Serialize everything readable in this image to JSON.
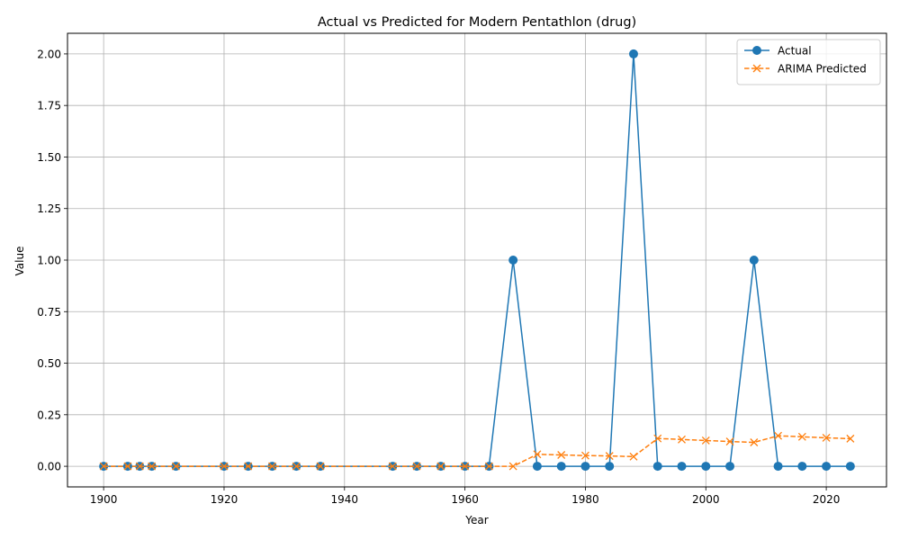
{
  "chart_data": {
    "type": "line",
    "title": "Actual vs Predicted for Modern Pentathlon (drug)",
    "xlabel": "Year",
    "ylabel": "Value",
    "xlim": [
      1894,
      2030
    ],
    "ylim": [
      -0.1,
      2.1
    ],
    "xticks": [
      1900,
      1920,
      1940,
      1960,
      1980,
      2000,
      2020
    ],
    "yticks": [
      0.0,
      0.25,
      0.5,
      0.75,
      1.0,
      1.25,
      1.5,
      1.75,
      2.0
    ],
    "ytick_labels": [
      "0.00",
      "0.25",
      "0.50",
      "0.75",
      "1.00",
      "1.25",
      "1.50",
      "1.75",
      "2.00"
    ],
    "grid": true,
    "legend_position": "upper right",
    "x": [
      1900,
      1904,
      1906,
      1908,
      1912,
      1920,
      1924,
      1928,
      1932,
      1936,
      1948,
      1952,
      1956,
      1960,
      1964,
      1968,
      1972,
      1976,
      1980,
      1984,
      1988,
      1992,
      1996,
      2000,
      2004,
      2008,
      2012,
      2016,
      2020,
      2024
    ],
    "series": [
      {
        "name": "Actual",
        "color": "#1f77b4",
        "marker": "circle",
        "linestyle": "solid",
        "values": [
          0,
          0,
          0,
          0,
          0,
          0,
          0,
          0,
          0,
          0,
          0,
          0,
          0,
          0,
          0,
          1,
          0,
          0,
          0,
          0,
          2,
          0,
          0,
          0,
          0,
          1,
          0,
          0,
          0,
          0
        ]
      },
      {
        "name": "ARIMA Predicted",
        "color": "#ff7f0e",
        "marker": "x",
        "linestyle": "dashed",
        "values": [
          0,
          0,
          0,
          0,
          0,
          0,
          0,
          0,
          0,
          0,
          0,
          0,
          0,
          0,
          0,
          0,
          0.058,
          0.055,
          0.052,
          0.05,
          0.047,
          0.135,
          0.13,
          0.125,
          0.12,
          0.116,
          0.148,
          0.143,
          0.138,
          0.134
        ]
      }
    ]
  }
}
